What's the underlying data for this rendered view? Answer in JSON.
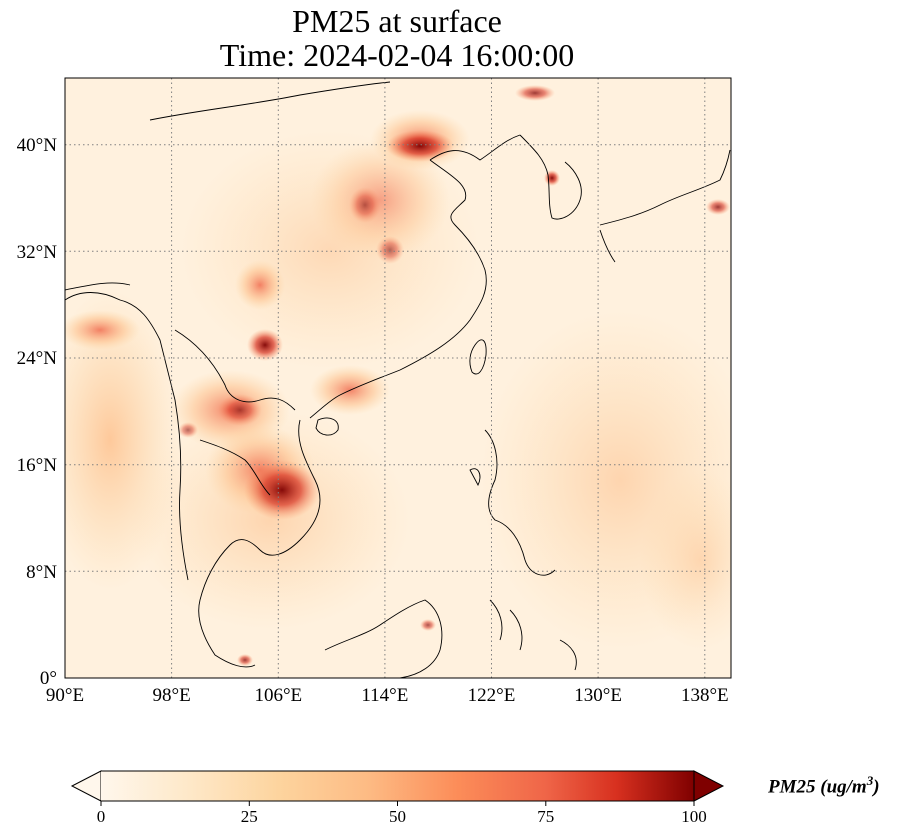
{
  "title_line1": "PM25 at surface",
  "title_line2": "Time: 2024-02-04 16:00:00",
  "lon_ticks": [
    "90°E",
    "98°E",
    "106°E",
    "114°E",
    "122°E",
    "130°E",
    "138°E"
  ],
  "lat_ticks": [
    "0°",
    "8°N",
    "16°N",
    "24°N",
    "32°N",
    "40°N"
  ],
  "extent": {
    "lon_min": 90,
    "lon_max": 139.5,
    "lat_min": 0,
    "lat_max": 45
  },
  "colorbar": {
    "label": "PM25 (ug/m",
    "label_sup": "3",
    "label_close": ")",
    "ticks": [
      "0",
      "25",
      "50",
      "75",
      "100"
    ],
    "min": 0,
    "max": 100,
    "colormap": "OrRd",
    "extend": "both"
  },
  "grid": "dotted",
  "colors": {
    "low": "#fff7ec",
    "mid": "#fc8d59",
    "high": "#7f0000"
  }
}
